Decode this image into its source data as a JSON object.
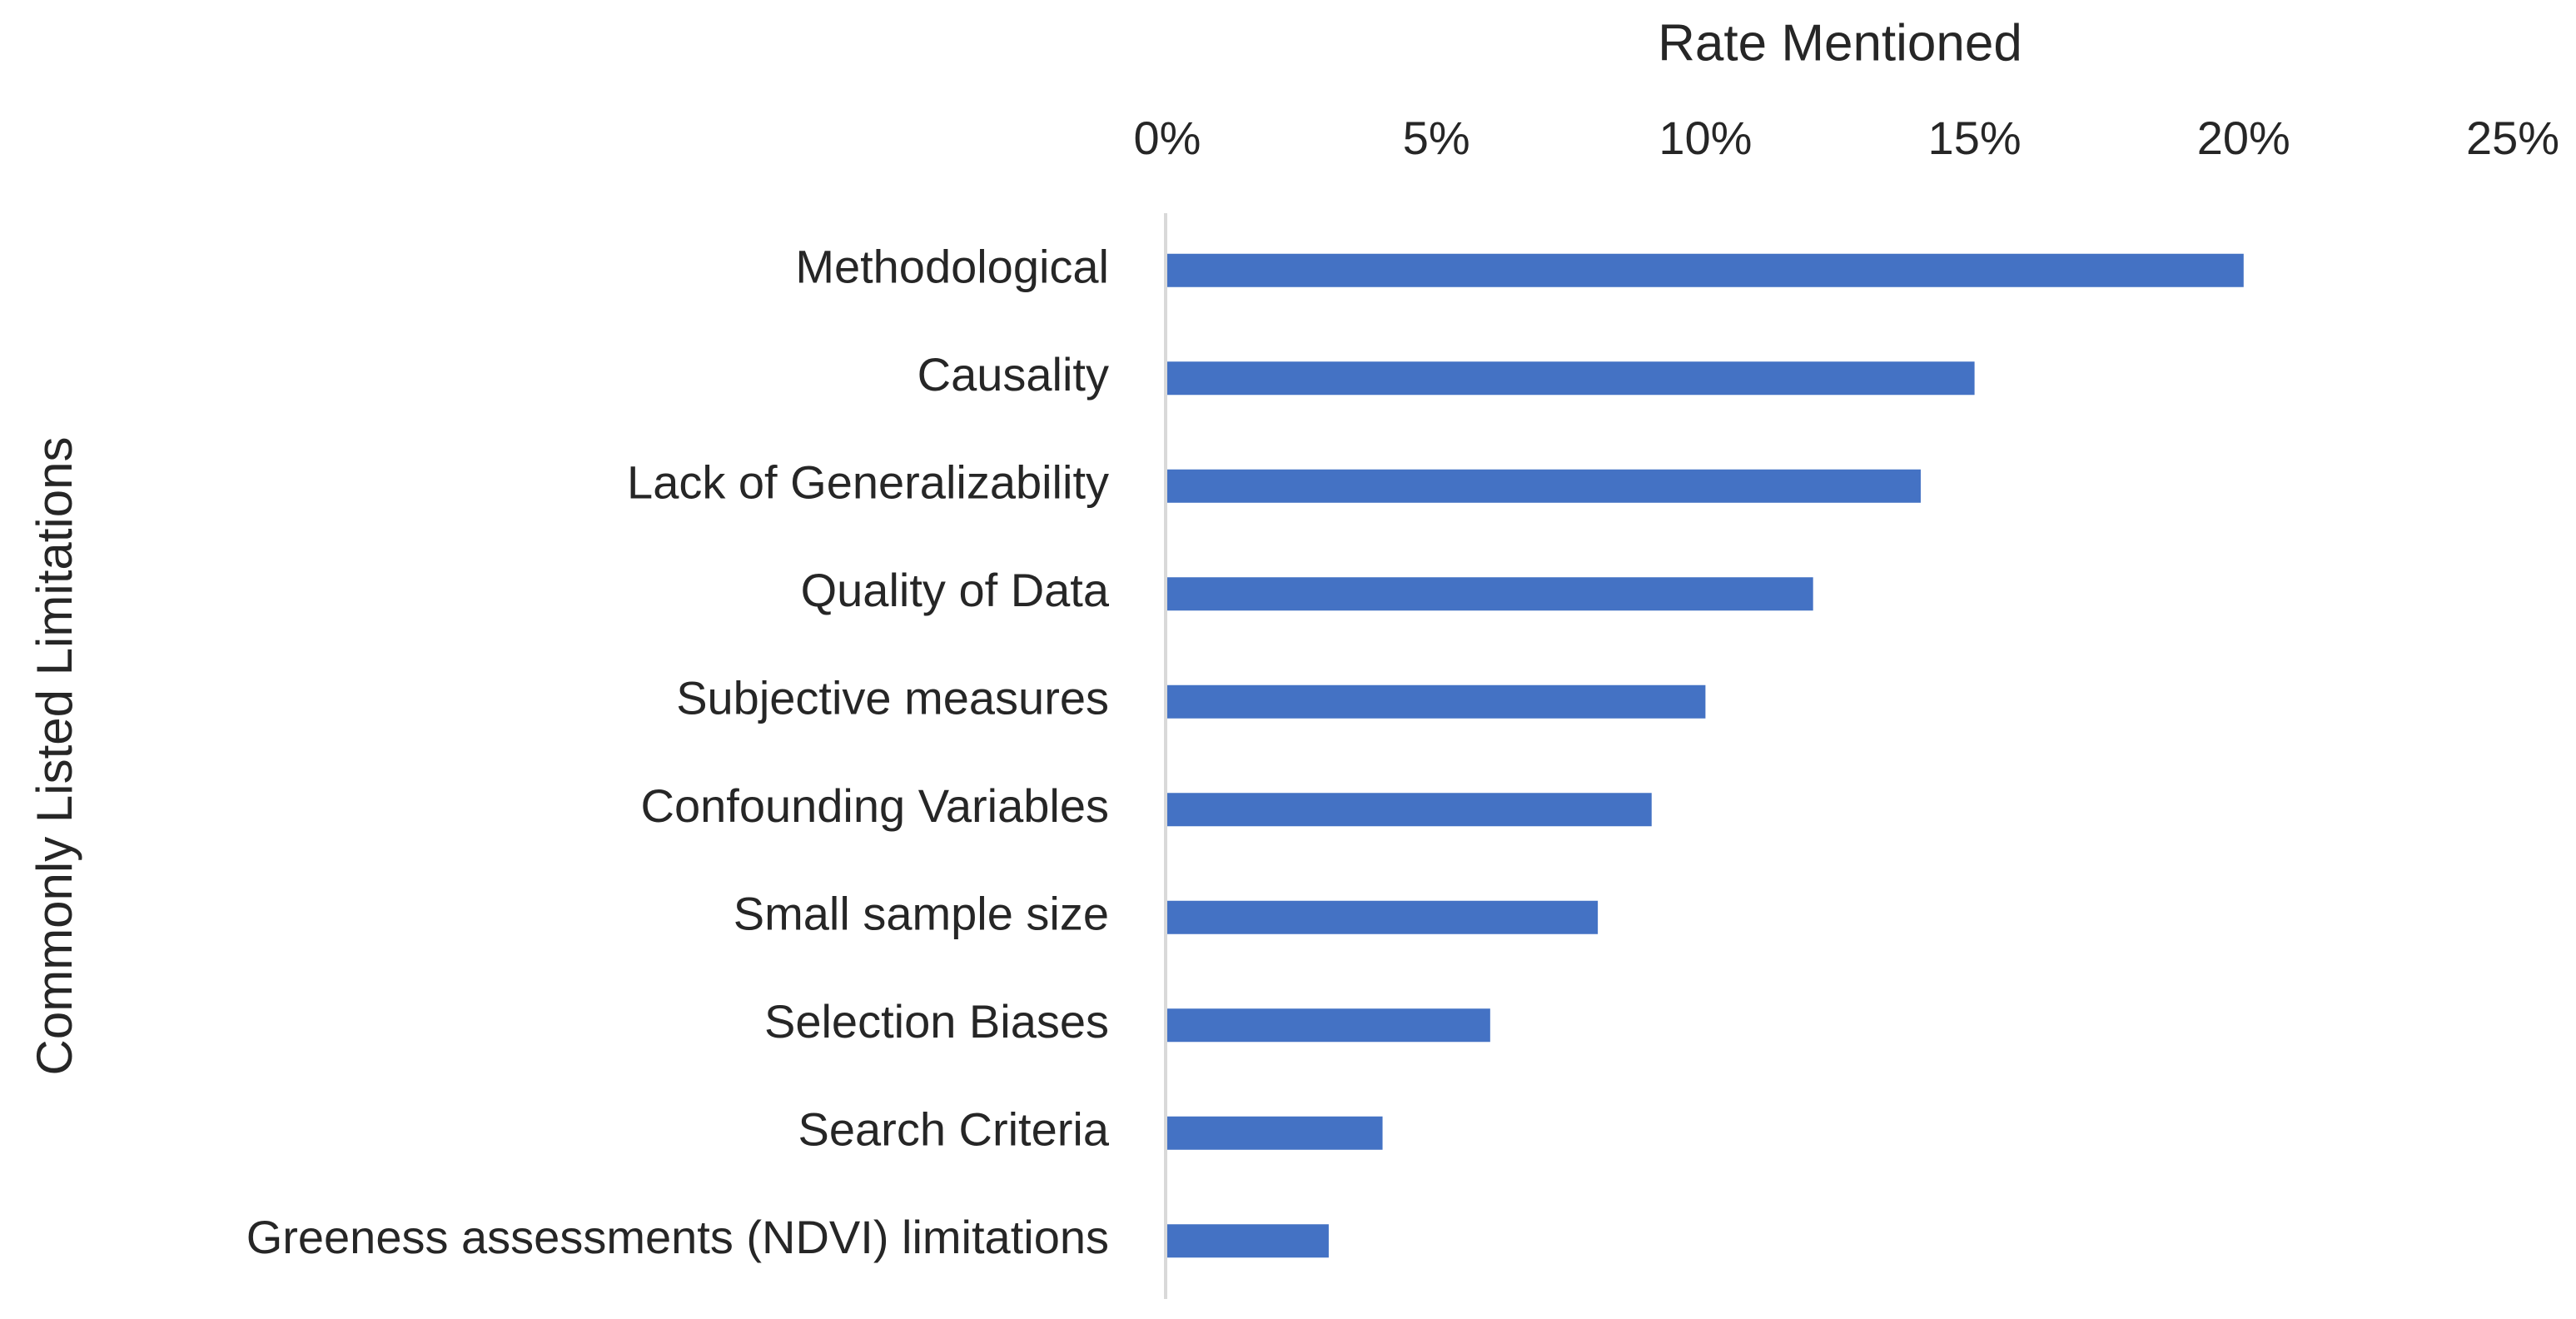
{
  "chart_data": {
    "type": "bar",
    "orientation": "horizontal",
    "x_label": "Rate Mentioned",
    "y_label": "Commonly Listed Limitations",
    "categories": [
      "Methodological",
      "Causality",
      "Lack of Generalizability",
      "Quality of Data",
      "Subjective measures",
      "Confounding Variables",
      "Small sample size",
      "Selection Biases",
      "Search Criteria",
      "Greeness assessments (NDVI) limitations"
    ],
    "values": [
      20,
      15,
      14,
      12,
      10,
      9,
      8,
      6,
      4,
      3
    ],
    "color": "#4472c4",
    "xlim": [
      0,
      25
    ],
    "xticks": [
      {
        "value": 0,
        "label": "0%"
      },
      {
        "value": 5,
        "label": "5%"
      },
      {
        "value": 10,
        "label": "10%"
      },
      {
        "value": 15,
        "label": "15%"
      },
      {
        "value": 20,
        "label": "20%"
      },
      {
        "value": 25,
        "label": "25%"
      }
    ],
    "grid": false
  }
}
